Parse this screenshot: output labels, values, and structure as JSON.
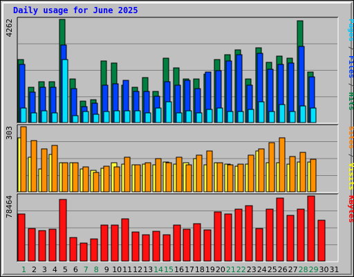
{
  "title": "Daily usage for June 2025",
  "chart_data": [
    {
      "type": "bar",
      "panel": "hits-files-pages",
      "ymax_label": "4262",
      "ymax": 4262,
      "right_labels": [
        {
          "text": "Pages",
          "color": "#00c8ff"
        },
        {
          "text": " / ",
          "color": "#404040"
        },
        {
          "text": "Files",
          "color": "#0040ff"
        },
        {
          "text": " / ",
          "color": "#404040"
        },
        {
          "text": "Hits",
          "color": "#008040"
        }
      ],
      "series": [
        {
          "name": "Hits",
          "color": "#008040",
          "values": [
            2600,
            1450,
            1700,
            1700,
            4262,
            1800,
            900,
            950,
            2550,
            2450,
            1550,
            1450,
            1850,
            1300,
            2650,
            2250,
            1800,
            1800,
            2000,
            2600,
            2800,
            3000,
            1800,
            3100,
            2500,
            2750,
            2650,
            4200,
            2100,
            0,
            0
          ]
        },
        {
          "name": "Files",
          "color": "#0040ff",
          "values": [
            2400,
            1250,
            1450,
            1450,
            3200,
            1400,
            650,
            800,
            1550,
            1600,
            1750,
            1300,
            1300,
            1100,
            1700,
            1550,
            1750,
            1400,
            2100,
            2150,
            2550,
            2800,
            1550,
            2850,
            2200,
            2400,
            2450,
            3150,
            1900,
            0,
            0
          ]
        },
        {
          "name": "Pages",
          "color": "#00e0ff",
          "values": [
            600,
            400,
            500,
            400,
            2600,
            300,
            450,
            350,
            450,
            500,
            500,
            500,
            400,
            600,
            850,
            400,
            500,
            400,
            550,
            600,
            450,
            450,
            550,
            850,
            450,
            750,
            450,
            700,
            600,
            0,
            0
          ]
        }
      ]
    },
    {
      "type": "bar",
      "panel": "visits-sites",
      "ymax_label": "303",
      "ymax": 303,
      "right_labels": [
        {
          "text": "Sites",
          "color": "#ff8000"
        },
        {
          "text": " / ",
          "color": "#404040"
        },
        {
          "text": "Visits",
          "color": "#ffff00"
        }
      ],
      "series": [
        {
          "name": "Visits",
          "color": "#ffff40",
          "values": [
            250,
            160,
            105,
            175,
            135,
            135,
            105,
            100,
            110,
            135,
            130,
            125,
            130,
            125,
            140,
            130,
            135,
            155,
            125,
            135,
            130,
            120,
            130,
            190,
            135,
            135,
            130,
            140,
            140,
            0,
            0
          ]
        },
        {
          "name": "Sites",
          "color": "#ff9000",
          "values": [
            303,
            240,
            200,
            215,
            135,
            135,
            115,
            90,
            120,
            115,
            160,
            125,
            135,
            155,
            135,
            160,
            125,
            170,
            190,
            135,
            125,
            130,
            170,
            200,
            230,
            250,
            165,
            185,
            150,
            0,
            0
          ]
        }
      ]
    },
    {
      "type": "bar",
      "panel": "kbytes",
      "ymax_label": "78464",
      "ymax": 78464,
      "right_labels": [
        {
          "text": "KBytes",
          "color": "#ff0000"
        }
      ],
      "series": [
        {
          "name": "KBytes",
          "color": "#ff1010",
          "values": [
            57000,
            39000,
            36500,
            38500,
            74000,
            28000,
            22000,
            27000,
            43500,
            43500,
            51000,
            35000,
            32000,
            36000,
            32000,
            43500,
            38500,
            45000,
            37500,
            59000,
            56500,
            63000,
            67000,
            39000,
            63000,
            76000,
            55000,
            63000,
            78464,
            49000,
            0
          ]
        }
      ]
    }
  ],
  "days": [
    {
      "label": "1",
      "color": "#008040"
    },
    {
      "label": "2",
      "color": "#000000"
    },
    {
      "label": "3",
      "color": "#000000"
    },
    {
      "label": "4",
      "color": "#000000"
    },
    {
      "label": "5",
      "color": "#000000"
    },
    {
      "label": "6",
      "color": "#000000"
    },
    {
      "label": "7",
      "color": "#008040"
    },
    {
      "label": "8",
      "color": "#008040"
    },
    {
      "label": "9",
      "color": "#000000"
    },
    {
      "label": "10",
      "color": "#000000"
    },
    {
      "label": "11",
      "color": "#000000"
    },
    {
      "label": "12",
      "color": "#000000"
    },
    {
      "label": "13",
      "color": "#000000"
    },
    {
      "label": "14",
      "color": "#008040"
    },
    {
      "label": "15",
      "color": "#008040"
    },
    {
      "label": "16",
      "color": "#000000"
    },
    {
      "label": "17",
      "color": "#000000"
    },
    {
      "label": "18",
      "color": "#000000"
    },
    {
      "label": "19",
      "color": "#000000"
    },
    {
      "label": "20",
      "color": "#000000"
    },
    {
      "label": "21",
      "color": "#008040"
    },
    {
      "label": "22",
      "color": "#008040"
    },
    {
      "label": "23",
      "color": "#000000"
    },
    {
      "label": "24",
      "color": "#000000"
    },
    {
      "label": "25",
      "color": "#000000"
    },
    {
      "label": "26",
      "color": "#000000"
    },
    {
      "label": "27",
      "color": "#000000"
    },
    {
      "label": "28",
      "color": "#008040"
    },
    {
      "label": "29",
      "color": "#008040"
    },
    {
      "label": "30",
      "color": "#000000"
    },
    {
      "label": "31",
      "color": "#000000"
    }
  ]
}
